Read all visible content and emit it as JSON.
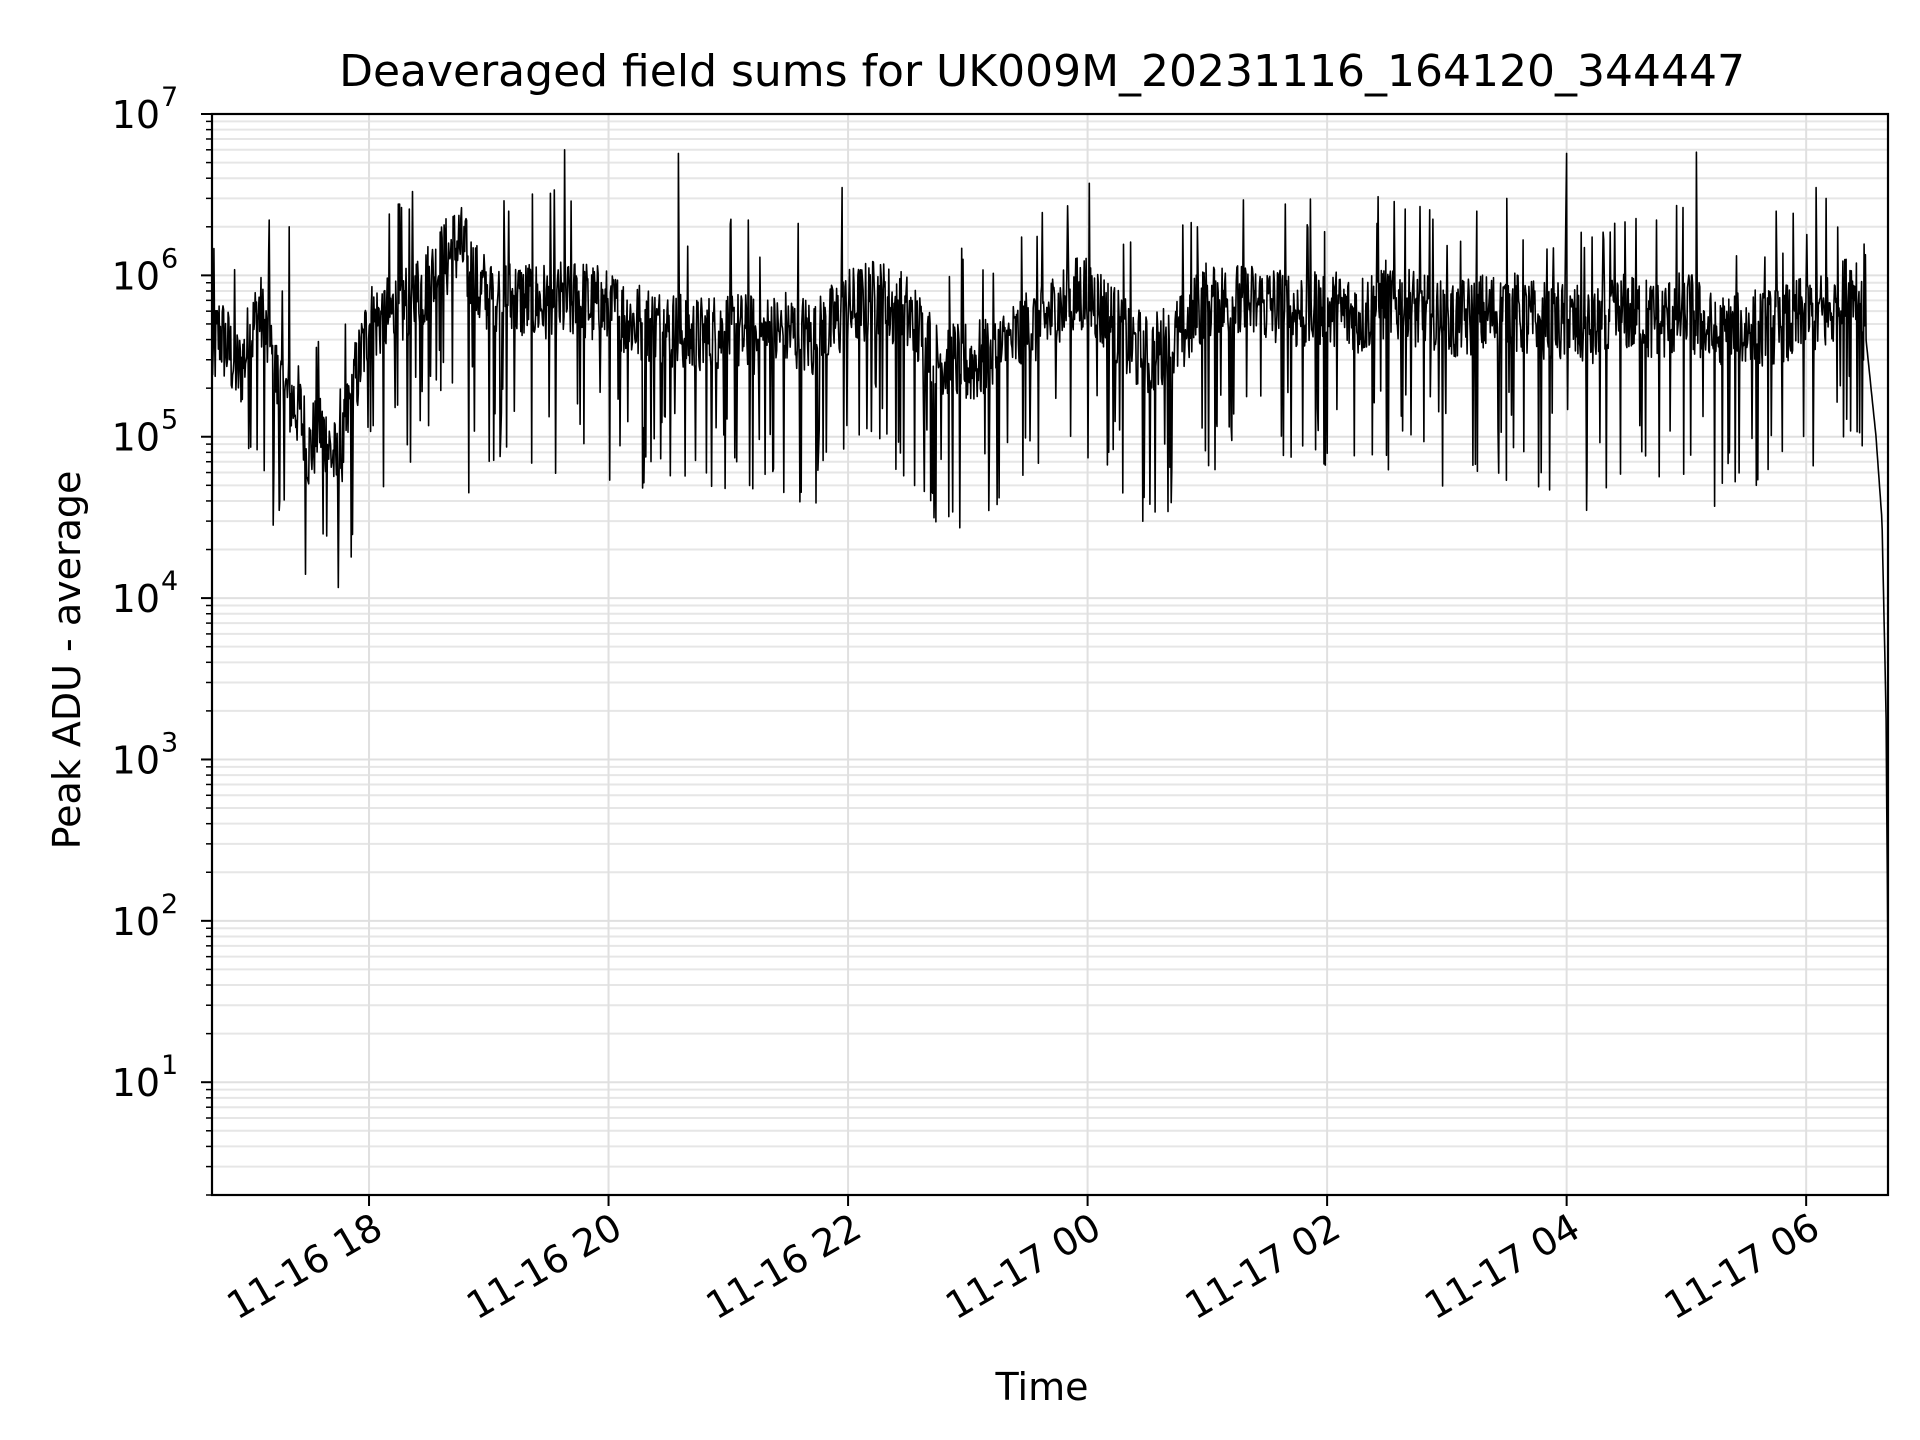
{
  "chart_data": {
    "type": "line",
    "title": "Deaveraged field sums for UK009M_20231116_164120_344447",
    "xlabel": "Time",
    "ylabel": "Peak ADU - average",
    "yscale": "log",
    "ylim": [
      2,
      10000000
    ],
    "xlim": [
      "2023-11-16T16:41:20",
      "2023-11-17T06:41:00"
    ],
    "x_ticks": [
      {
        "label": "11-16 18",
        "value": "2023-11-16T18:00:00"
      },
      {
        "label": "11-16 20",
        "value": "2023-11-16T20:00:00"
      },
      {
        "label": "11-16 22",
        "value": "2023-11-16T22:00:00"
      },
      {
        "label": "11-17 00",
        "value": "2023-11-17T00:00:00"
      },
      {
        "label": "11-17 02",
        "value": "2023-11-17T02:00:00"
      },
      {
        "label": "11-17 04",
        "value": "2023-11-17T04:00:00"
      },
      {
        "label": "11-17 06",
        "value": "2023-11-17T06:00:00"
      }
    ],
    "y_ticks": [
      {
        "base": "10",
        "exp": "1",
        "value": 10
      },
      {
        "base": "10",
        "exp": "2",
        "value": 100
      },
      {
        "base": "10",
        "exp": "3",
        "value": 1000
      },
      {
        "base": "10",
        "exp": "4",
        "value": 10000
      },
      {
        "base": "10",
        "exp": "5",
        "value": 100000
      },
      {
        "base": "10",
        "exp": "6",
        "value": 1000000
      },
      {
        "base": "10",
        "exp": "7",
        "value": 10000000
      }
    ],
    "grid": true,
    "series_color": "#000000",
    "series": [
      {
        "x": [
          "2023-11-16T16:41:20",
          "2023-11-16T16:45:00",
          "2023-11-16T16:55:00",
          "2023-11-16T17:05:00",
          "2023-11-16T17:15:00",
          "2023-11-16T17:25:00",
          "2023-11-16T17:30:00",
          "2023-11-16T17:35:00",
          "2023-11-16T17:45:00",
          "2023-11-16T17:50:00",
          "2023-11-16T18:00:00",
          "2023-11-16T18:15:00",
          "2023-11-16T18:30:00",
          "2023-11-16T18:45:00",
          "2023-11-16T18:55:00",
          "2023-11-16T19:10:00",
          "2023-11-16T19:20:00",
          "2023-11-16T19:30:00",
          "2023-11-16T19:45:00",
          "2023-11-16T20:00:00",
          "2023-11-16T20:15:00",
          "2023-11-16T20:30:00",
          "2023-11-16T20:45:00",
          "2023-11-16T21:00:00",
          "2023-11-16T21:15:00",
          "2023-11-16T21:30:00",
          "2023-11-16T21:45:00",
          "2023-11-16T22:00:00",
          "2023-11-16T22:15:00",
          "2023-11-16T22:30:00",
          "2023-11-16T22:45:00",
          "2023-11-16T23:00:00",
          "2023-11-16T23:15:00",
          "2023-11-16T23:30:00",
          "2023-11-16T23:45:00",
          "2023-11-17T00:00:00",
          "2023-11-17T00:15:00",
          "2023-11-17T00:30:00",
          "2023-11-17T00:45:00",
          "2023-11-17T01:00:00",
          "2023-11-17T01:15:00",
          "2023-11-17T01:30:00",
          "2023-11-17T01:45:00",
          "2023-11-17T02:00:00",
          "2023-11-17T02:15:00",
          "2023-11-17T02:30:00",
          "2023-11-17T02:45:00",
          "2023-11-17T03:00:00",
          "2023-11-17T03:15:00",
          "2023-11-17T03:30:00",
          "2023-11-17T03:45:00",
          "2023-11-17T04:00:00",
          "2023-11-17T04:15:00",
          "2023-11-17T04:30:00",
          "2023-11-17T04:45:00",
          "2023-11-17T05:00:00",
          "2023-11-17T05:15:00",
          "2023-11-17T05:30:00",
          "2023-11-17T05:45:00",
          "2023-11-17T06:00:00",
          "2023-11-17T06:15:00",
          "2023-11-17T06:25:00",
          "2023-11-17T06:30:00",
          "2023-11-17T06:35:00",
          "2023-11-17T06:38:00",
          "2023-11-17T06:40:00",
          "2023-11-17T06:41:00"
        ],
        "y": [
          300000,
          450000,
          250000,
          600000,
          200000,
          150000,
          80000,
          120000,
          60000,
          150000,
          500000,
          600000,
          900000,
          1600000,
          800000,
          700000,
          700000,
          650000,
          700000,
          600000,
          500000,
          450000,
          400000,
          450000,
          400000,
          450000,
          400000,
          600000,
          700000,
          550000,
          300000,
          280000,
          320000,
          450000,
          600000,
          800000,
          450000,
          300000,
          400000,
          700000,
          650000,
          650000,
          600000,
          600000,
          550000,
          700000,
          600000,
          500000,
          550000,
          600000,
          500000,
          500000,
          450000,
          600000,
          500000,
          600000,
          400000,
          450000,
          450000,
          550000,
          600000,
          900000,
          400000,
          100000,
          30000,
          2000,
          50
        ]
      }
    ],
    "spikes": [
      {
        "x": "2023-11-16T17:10:00",
        "y": 2200000
      },
      {
        "x": "2023-11-16T17:20:00",
        "y": 2000000
      },
      {
        "x": "2023-11-16T17:15:00",
        "y": 35000
      },
      {
        "x": "2023-11-16T17:37:00",
        "y": 25000
      },
      {
        "x": "2023-11-16T18:50:00",
        "y": 45000
      },
      {
        "x": "2023-11-16T19:38:00",
        "y": 6000000
      },
      {
        "x": "2023-11-16T19:10:00",
        "y": 2500000
      },
      {
        "x": "2023-11-16T20:35:00",
        "y": 5700000
      },
      {
        "x": "2023-11-16T21:10:00",
        "y": 2200000
      },
      {
        "x": "2023-11-16T21:35:00",
        "y": 2100000
      },
      {
        "x": "2023-11-16T21:57:00",
        "y": 3500000
      },
      {
        "x": "2023-11-16T23:50:00",
        "y": 2700000
      },
      {
        "x": "2023-11-17T00:55:00",
        "y": 2000000
      },
      {
        "x": "2023-11-17T02:25:00",
        "y": 2100000
      },
      {
        "x": "2023-11-17T03:15:00",
        "y": 2500000
      },
      {
        "x": "2023-11-17T03:30:00",
        "y": 3000000
      },
      {
        "x": "2023-11-17T04:00:00",
        "y": 5700000
      },
      {
        "x": "2023-11-17T04:10:00",
        "y": 35000
      },
      {
        "x": "2023-11-17T04:45:00",
        "y": 2200000
      },
      {
        "x": "2023-11-17T05:05:00",
        "y": 5800000
      },
      {
        "x": "2023-11-17T05:35:00",
        "y": 50000
      },
      {
        "x": "2023-11-17T05:45:00",
        "y": 2500000
      },
      {
        "x": "2023-11-17T06:10:00",
        "y": 3000000
      },
      {
        "x": "2023-11-17T06:05:00",
        "y": 3500000
      }
    ]
  }
}
